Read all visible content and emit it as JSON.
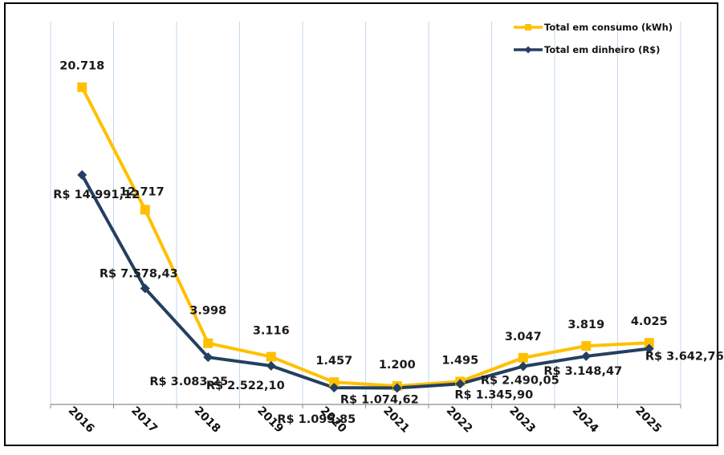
{
  "chart_data": {
    "type": "line",
    "title": "",
    "xlabel": "",
    "ylabel": "",
    "categories": [
      "2016",
      "2017",
      "2018",
      "2019",
      "2020",
      "2021",
      "2022",
      "2023",
      "2024",
      "2025"
    ],
    "ylim": [
      0,
      25000
    ],
    "grid": "vertical",
    "legend_position": "top-right",
    "series": [
      {
        "name": "Total em consumo (kWh)",
        "color": "#FFC000",
        "marker": "square",
        "values": [
          20718,
          12717,
          3998,
          3116,
          1457,
          1200,
          1495,
          3047,
          3819,
          4025
        ],
        "labels": [
          "20.718",
          "12.717",
          "3.998",
          "3.116",
          "1.457",
          "1.200",
          "1.495",
          "3.047",
          "3.819",
          "4.025"
        ]
      },
      {
        "name": "Total em dinheiro (R$)",
        "color": "#243F60",
        "marker": "diamond",
        "values": [
          14991.12,
          7578.43,
          3083.25,
          2522.1,
          1095.85,
          1074.62,
          1345.9,
          2490.05,
          3148.47,
          3642.76
        ],
        "labels": [
          "R$ 14.991,12",
          "R$ 7.578,43",
          "R$ 3.083,25",
          "R$ 2.522,10",
          "R$ 1.095,85",
          "R$ 1.074,62",
          "R$ 1.345,90",
          "R$ 2.490,05",
          "R$ 3.148,47",
          "R$ 3.642,76"
        ]
      }
    ]
  }
}
